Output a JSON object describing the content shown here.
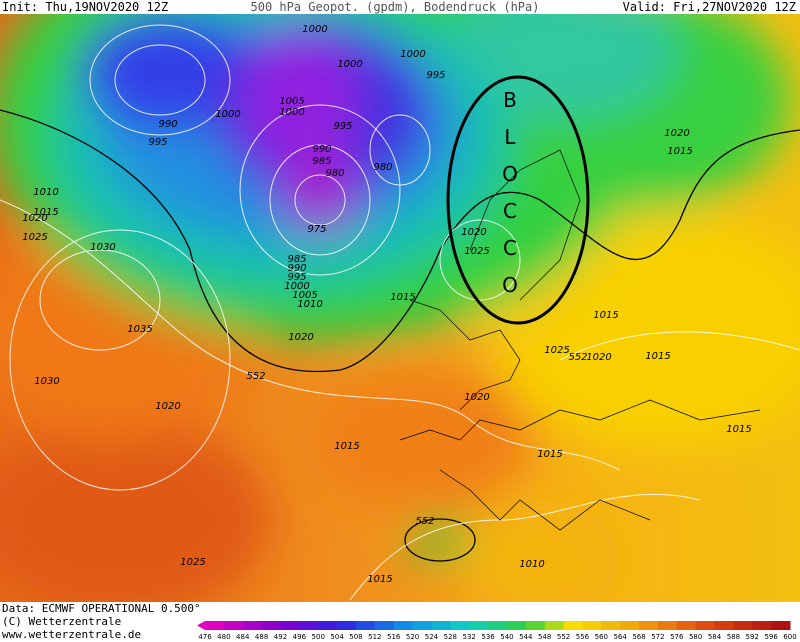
{
  "header": {
    "init": "Init: Thu,19NOV2020 12Z",
    "title": "500 hPa Geopot. (gpdm), Bodendruck (hPa)",
    "valid": "Valid: Fri,27NOV2020 12Z"
  },
  "map_labels": [
    "1000",
    "1000",
    "1000",
    "995",
    "1005",
    "1000",
    "1000",
    "990",
    "995",
    "995",
    "990",
    "985",
    "980",
    "980",
    "975",
    "985",
    "990",
    "995",
    "1000",
    "1005",
    "1010",
    "1010",
    "1015",
    "1020",
    "1025",
    "1030",
    "1035",
    "1020",
    "552",
    "1030",
    "1020",
    "1015",
    "1025",
    "1015",
    "552",
    "1010",
    "1015",
    "1020",
    "1015",
    "1020",
    "1025",
    "1025",
    "552",
    "1020",
    "1015",
    "1015",
    "1015",
    "1020",
    "1015"
  ],
  "annotation": [
    "B",
    "L",
    "O",
    "C",
    "C",
    "O"
  ],
  "colorbar": {
    "ticks": [
      476,
      480,
      484,
      488,
      492,
      496,
      500,
      504,
      508,
      512,
      516,
      520,
      524,
      528,
      532,
      536,
      540,
      544,
      548,
      552,
      556,
      560,
      564,
      568,
      572,
      576,
      580,
      584,
      588,
      592,
      596,
      600
    ]
  },
  "footer": {
    "data": "Data: ECMWF OPERATIONAL 0.500°",
    "copyright": "(C) Wetterzentrale",
    "url": "www.wetterzentrale.de"
  }
}
